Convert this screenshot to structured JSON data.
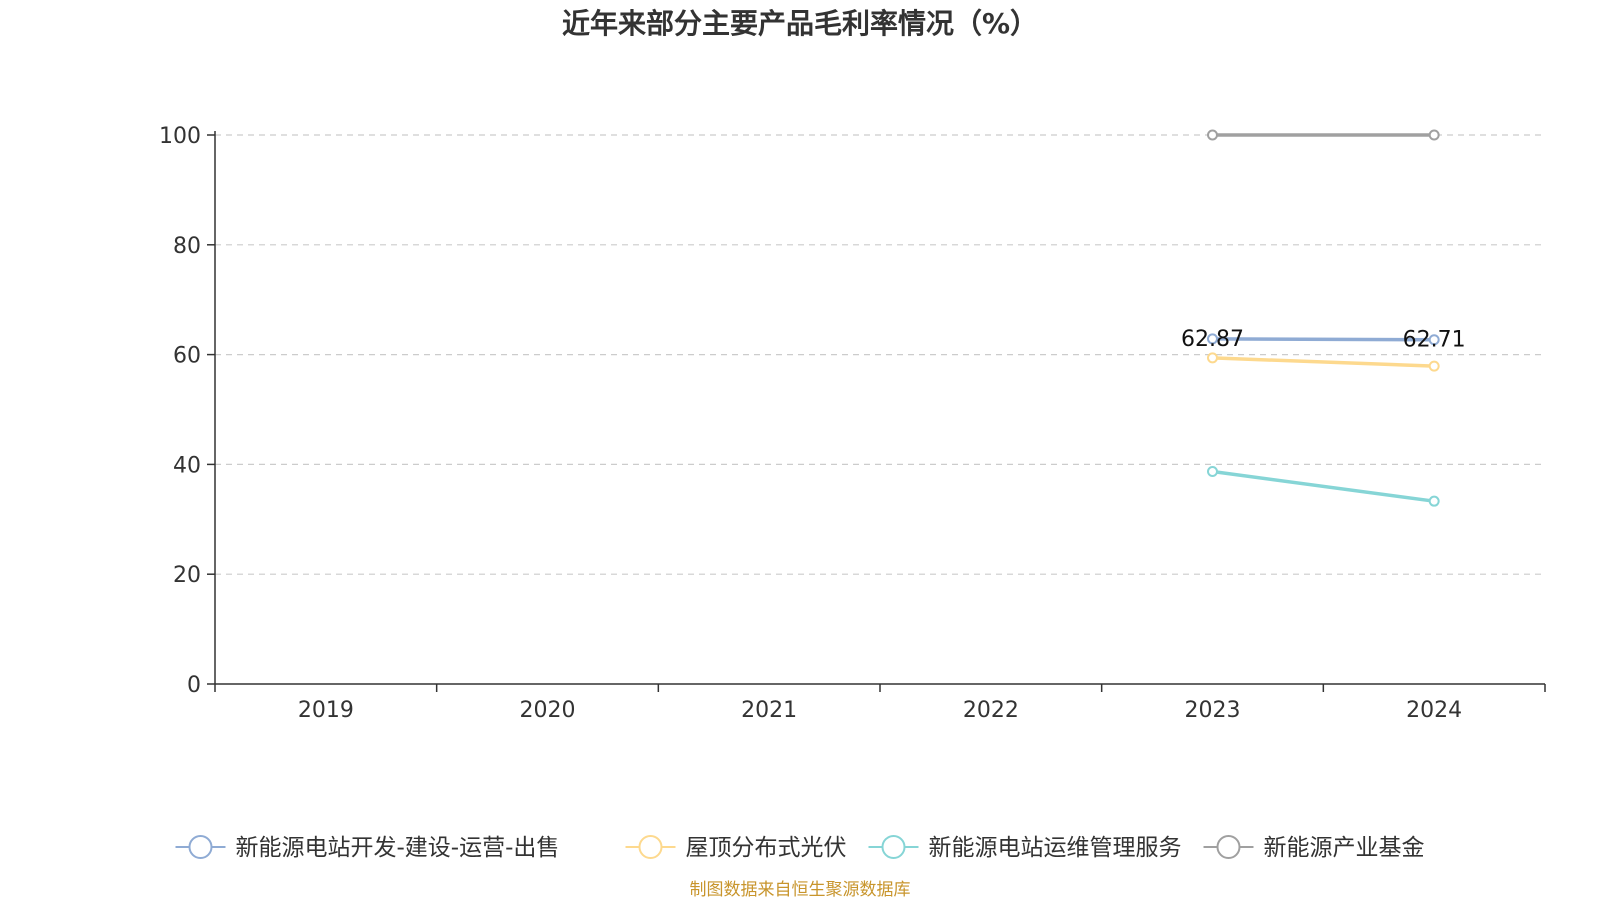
{
  "chart_data": {
    "type": "line",
    "title": "近年来部分主要产品毛利率情况（%）",
    "categories": [
      "2019",
      "2020",
      "2021",
      "2022",
      "2023",
      "2024"
    ],
    "ylim": [
      0,
      100
    ],
    "yticks": [
      0,
      20,
      40,
      60,
      80,
      100
    ],
    "grid": true,
    "legend_position": "bottom",
    "series": [
      {
        "name": "新能源电站开发-建设-运营-出售",
        "color": "#8fabd4",
        "values": [
          null,
          null,
          null,
          null,
          62.87,
          62.71
        ],
        "labels": [
          null,
          null,
          null,
          null,
          "62.87",
          "62.71"
        ]
      },
      {
        "name": "屋顶分布式光伏",
        "color": "#fdd98e",
        "values": [
          null,
          null,
          null,
          null,
          59.4,
          57.9
        ],
        "labels": [
          null,
          null,
          null,
          null,
          null,
          null
        ]
      },
      {
        "name": "新能源电站运维管理服务",
        "color": "#86d5d6",
        "values": [
          null,
          null,
          null,
          null,
          38.7,
          33.3
        ],
        "labels": [
          null,
          null,
          null,
          null,
          null,
          null
        ]
      },
      {
        "name": "新能源产业基金",
        "color": "#a0a0a0",
        "values": [
          null,
          null,
          null,
          null,
          100,
          100
        ],
        "labels": [
          null,
          null,
          null,
          null,
          null,
          null
        ]
      }
    ]
  },
  "source": {
    "text": "制图数据来自恒生聚源数据库",
    "color": "#c8952c"
  }
}
